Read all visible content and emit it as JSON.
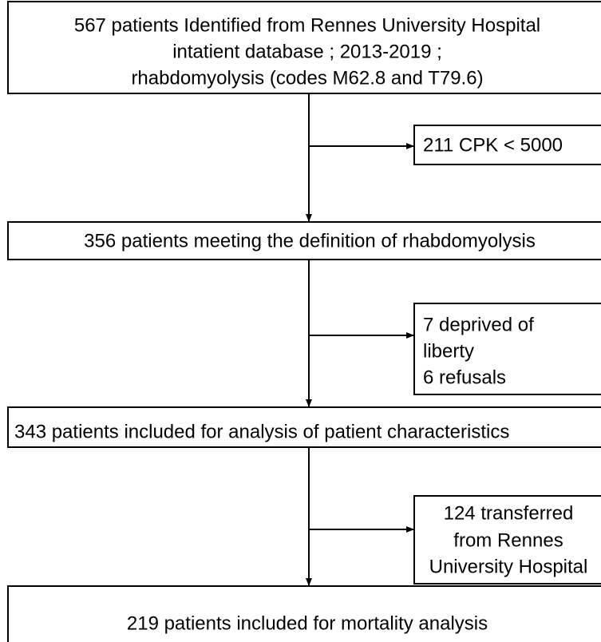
{
  "nodes": [
    {
      "lines": [
        "567 patients Identified from Rennes University Hospital",
        "intatient database ; 2013-2019 ;",
        "rhabdomyolysis (codes M62.8 and T79.6)"
      ]
    },
    {
      "lines": [
        "211 CPK < 5000"
      ]
    },
    {
      "lines": [
        "356 patients meeting the definition of rhabdomyolysis"
      ]
    },
    {
      "lines": [
        "7 deprived of",
        "liberty",
        "6 refusals"
      ]
    },
    {
      "lines": [
        "343 patients included for analysis of patient characteristics"
      ]
    },
    {
      "lines": [
        "124 transferred",
        "from Rennes",
        "University Hospital"
      ]
    },
    {
      "lines": [
        "219 patients included for mortality analysis"
      ]
    }
  ]
}
